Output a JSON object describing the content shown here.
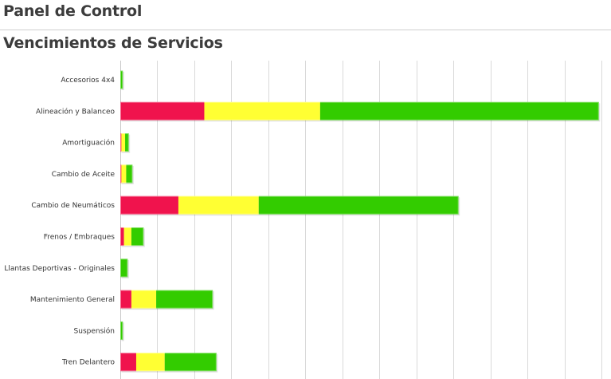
{
  "header": {
    "title": "Panel de Control"
  },
  "section": {
    "title": "Vencimientos de Servicios"
  },
  "colors": {
    "red": "#f0134d",
    "yellow": "#ffff33",
    "green": "#33cc00",
    "grid": "#d9d9d9"
  },
  "chart_data": {
    "type": "bar",
    "orientation": "horizontal",
    "stacked": true,
    "categories": [
      "Accesorios 4x4",
      "Alineación y Balanceo",
      "Amortiguación",
      "Cambio de Aceite",
      "Cambio de Neumáticos",
      "Frenos / Embraques",
      "Llantas Deportivas - Originales",
      "Mantenimiento General",
      "Suspensión",
      "Tren Delantero"
    ],
    "series": [
      {
        "color": "red",
        "values": [
          0,
          22.7,
          0.3,
          0.3,
          15.7,
          1.0,
          0,
          3.0,
          0,
          4.3
        ]
      },
      {
        "color": "yellow",
        "values": [
          0,
          31.3,
          1.0,
          1.3,
          21.7,
          2.0,
          0,
          6.7,
          0,
          7.7
        ]
      },
      {
        "color": "green",
        "values": [
          0.7,
          75.3,
          1.0,
          1.7,
          54.0,
          3.3,
          2.0,
          15.3,
          0.7,
          14.0
        ]
      }
    ],
    "xlim": [
      0,
      130
    ],
    "grid": true,
    "legend": false
  }
}
